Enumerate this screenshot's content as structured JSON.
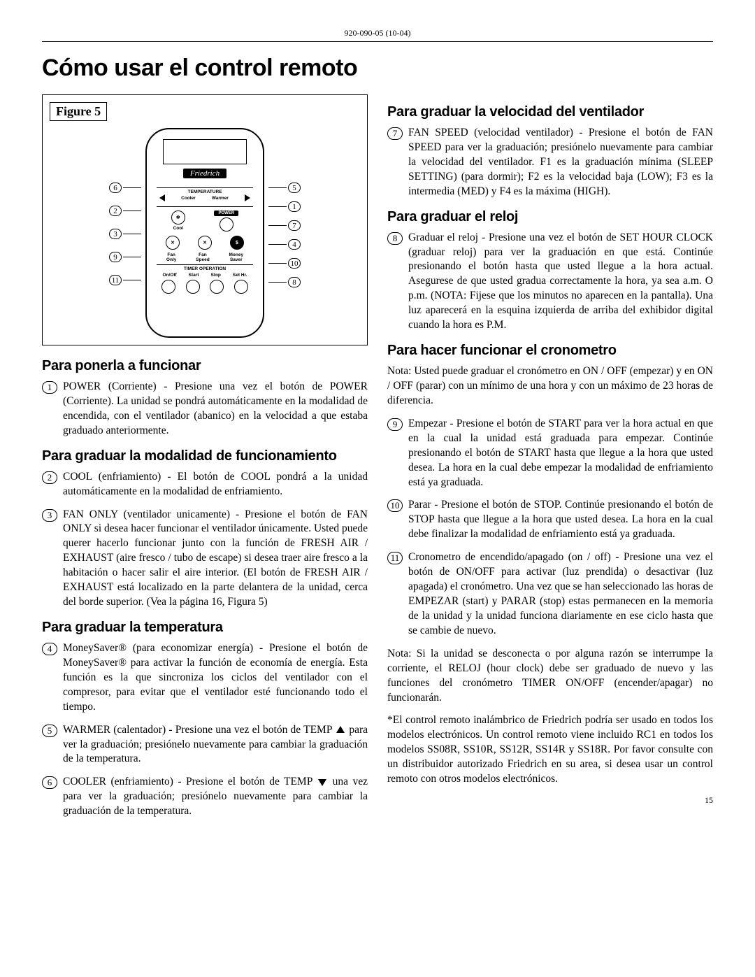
{
  "header_code": "920-090-05 (10-04)",
  "title": "Cómo usar el control remoto",
  "figure_caption": "Figure 5",
  "brand": "Friedrich",
  "remote": {
    "temperature_label": "TEMPERATURE",
    "cooler": "Cooler",
    "warmer": "Warmer",
    "cool_btn": "Cool",
    "power_label": "POWER",
    "fan_only": "Fan\nOnly",
    "fan_speed": "Fan\nSpeed",
    "money_saver": "Money\nSaver",
    "timer_op": "TIMER OPERATION",
    "onoff": "On/Off",
    "start": "Start",
    "stop": "Stop",
    "sethr": "Set Hr."
  },
  "callouts_left": [
    "6",
    "2",
    "3",
    "9",
    "11"
  ],
  "callouts_right": [
    "5",
    "1",
    "7",
    "4",
    "10",
    "8"
  ],
  "left_sections": [
    {
      "heading": "Para ponerla a funcionar",
      "entries": [
        {
          "n": "1",
          "t": "POWER (Corriente) - Presione una vez el botón de POWER (Corriente). La unidad se pondrá automáticamente en la modalidad de encendida, con el ventilador (abanico) en la velocidad a que estaba graduado anteriormente."
        }
      ]
    },
    {
      "heading": "Para graduar la modalidad de funcionamiento",
      "entries": [
        {
          "n": "2",
          "t": "COOL (enfriamiento) - El botón de COOL pondrá a la unidad automáticamente en la modalidad de enfriamiento."
        },
        {
          "n": "3",
          "t": "FAN ONLY (ventilador unicamente) - Presione el botón de FAN ONLY si desea hacer funcionar el ventilador únicamente. Usted puede querer hacerlo funcionar junto con la función de FRESH AIR / EXHAUST (aire fresco / tubo de escape) si desea traer aire fresco a la habitación o hacer salir el aire interior. (El botón de FRESH AIR / EXHAUST está localizado en la parte delantera de la unidad, cerca del borde superior. (Vea la página 16, Figura 5)"
        }
      ]
    },
    {
      "heading": "Para graduar la temperatura",
      "entries": [
        {
          "n": "4",
          "t": "MoneySaver® (para economizar energía) - Presione el botón de MoneySaver® para activar la función de economía de energía. Esta función es la que sincroniza los ciclos del ventilador con el compresor, para evitar que el ventilador esté funcionando todo el tiempo."
        },
        {
          "n": "5",
          "t": "WARMER (calentador) - Presione una vez el botón de TEMP ▲ para ver la graduación; presiónelo nuevamente para cambiar la graduación de la temperatura.",
          "tri": "up"
        },
        {
          "n": "6",
          "t": "COOLER (enfriamiento) - Presione el botón de TEMP ▼ una vez para ver la graduación; presiónelo nuevamente para cambiar la graduación de la temperatura.",
          "tri": "down"
        }
      ]
    }
  ],
  "right_sections": [
    {
      "heading": "Para graduar la velocidad del ventilador",
      "entries": [
        {
          "n": "7",
          "t": "FAN SPEED (velocidad ventilador) - Presione el botón de FAN SPEED para ver la graduación; presiónelo nuevamente para cambiar la velocidad del ventilador. F1 es la graduación mínima (SLEEP SETTING) (para dormir); F2 es la velocidad baja (LOW); F3 es la intermedia (MED) y F4 es la máxima (HIGH)."
        }
      ]
    },
    {
      "heading": "Para graduar el reloj",
      "entries": [
        {
          "n": "8",
          "t": "Graduar el reloj - Presione una vez el botón de SET HOUR CLOCK (graduar reloj) para ver la graduación en que está. Continúe presionando el botón hasta que usted llegue a la hora actual. Asegurese de que usted gradua correctamente la hora, ya sea a.m. O p.m. (NOTA: Fijese que los minutos no aparecen en la pantalla). Una luz aparecerá en la esquina izquierda de arriba del exhibidor digital cuando la hora es P.M."
        }
      ]
    },
    {
      "heading": "Para hacer funcionar el cronometro",
      "intro": "Nota: Usted puede graduar el cronómetro en ON / OFF (empezar) y en ON / OFF (parar) con un mínimo de una hora y con un máximo de 23 horas de diferencia.",
      "entries": [
        {
          "n": "9",
          "t": "Empezar - Presione el botón de START para ver la hora actual en que en la cual la unidad está graduada para empezar. Continúe presionando el botón de START hasta que llegue a la hora que usted desea. La hora en la cual debe empezar la modalidad de enfriamiento está ya graduada."
        },
        {
          "n": "10",
          "t": "Parar - Presione el botón de STOP. Continúe presionando el botón de STOP hasta que llegue a la hora que usted desea. La hora en la cual debe finalizar la modalidad de enfriamiento está ya graduada."
        },
        {
          "n": "11",
          "t": "Cronometro de encendido/apagado (on / off) - Presione una vez el botón de ON/OFF para activar (luz prendida) o desactivar (luz apagada) el cronómetro. Una vez que se han seleccionado las horas de EMPEZAR (start) y PARAR (stop) estas permanecen en la memoria de la unidad y la unidad funciona diariamente en ese ciclo hasta que se cambie de nuevo."
        }
      ],
      "after": [
        "Nota: Si la unidad se desconecta o por alguna razón se interrumpe la corriente, el RELOJ (hour clock) debe ser graduado de nuevo y las funciones del cronómetro TIMER ON/OFF (encender/apagar) no funcionarán.",
        "*El control remoto inalámbrico de Friedrich podría ser usado en todos los modelos electrónicos. Un control remoto viene incluido RC1 en todos los modelos SS08R, SS10R, SS12R, SS14R y SS18R. Por favor consulte con un distribuidor autorizado Friedrich en su area, si desea usar un control remoto con otros modelos electrónicos."
      ]
    }
  ],
  "page_number": "15"
}
